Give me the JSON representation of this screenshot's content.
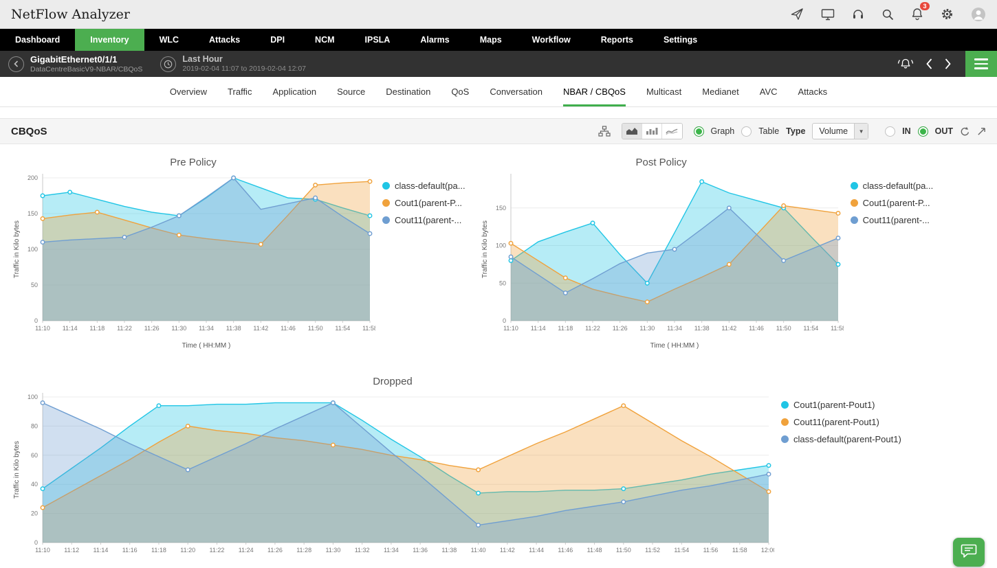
{
  "app": {
    "title": "NetFlow Analyzer",
    "notification_count": "3"
  },
  "icons": {
    "topbar": [
      "send-icon",
      "monitor-icon",
      "headset-icon",
      "search-icon",
      "notifications-icon",
      "settings-icon",
      "user-avatar"
    ],
    "subheader": [
      "back-icon",
      "clock-icon",
      "alarm-icon",
      "chevron-left-icon",
      "chevron-right-icon",
      "menu-icon"
    ],
    "toolbar": [
      "hierarchy-icon",
      "area-chart-icon",
      "bar-chart-icon",
      "line-chart-icon",
      "refresh-icon",
      "expand-icon"
    ],
    "footer": [
      "chat-icon"
    ]
  },
  "colors": {
    "accent_green": "#4cae50",
    "series_cyan": "#20c5e5",
    "series_orange": "#f0a23c",
    "series_blue": "#6f9ed1",
    "badge_red": "#e8483b",
    "nav_black": "#000000",
    "subheader_gray": "#323232"
  },
  "nav": {
    "items": [
      {
        "label": "Dashboard",
        "active": false
      },
      {
        "label": "Inventory",
        "active": true
      },
      {
        "label": "WLC",
        "active": false
      },
      {
        "label": "Attacks",
        "active": false
      },
      {
        "label": "DPI",
        "active": false
      },
      {
        "label": "NCM",
        "active": false
      },
      {
        "label": "IPSLA",
        "active": false
      },
      {
        "label": "Alarms",
        "active": false
      },
      {
        "label": "Maps",
        "active": false
      },
      {
        "label": "Workflow",
        "active": false
      },
      {
        "label": "Reports",
        "active": false
      },
      {
        "label": "Settings",
        "active": false
      }
    ]
  },
  "subheader": {
    "device_name": "GigabitEthernet0/1/1",
    "device_path": "DataCentreBasicV9-NBAR/CBQoS",
    "period_label": "Last Hour",
    "period_range": "2019-02-04 11:07 to 2019-02-04 12:07"
  },
  "tabs": {
    "items": [
      "Overview",
      "Traffic",
      "Application",
      "Source",
      "Destination",
      "QoS",
      "Conversation",
      "NBAR / CBQoS",
      "Multicast",
      "Medianet",
      "AVC",
      "Attacks"
    ],
    "active": "NBAR / CBQoS"
  },
  "toolbar": {
    "title": "CBQoS",
    "graph_label": "Graph",
    "table_label": "Table",
    "type_label": "Type",
    "type_value": "Volume",
    "in_label": "IN",
    "out_label": "OUT",
    "graph_selected": true,
    "table_selected": false,
    "in_selected": false,
    "out_selected": true
  },
  "chart_data": [
    {
      "type": "area",
      "title": "Pre Policy",
      "xlabel": "Time ( HH:MM )",
      "ylabel": "Traffic in Kilo bytes",
      "ylim": [
        0,
        200
      ],
      "yticks": [
        0,
        50,
        100,
        150,
        200
      ],
      "grid": "horizontal",
      "legend_position": "right",
      "categories": [
        "11:10",
        "11:14",
        "11:18",
        "11:22",
        "11:26",
        "11:30",
        "11:34",
        "11:38",
        "11:42",
        "11:46",
        "11:50",
        "11:54",
        "11:58"
      ],
      "series": [
        {
          "name": "class-default(pa...",
          "color": "#20c5e5",
          "values": [
            175,
            180,
            170,
            160,
            152,
            147,
            172,
            200,
            186,
            172,
            170,
            158,
            147
          ],
          "markers": [
            0,
            1,
            5,
            7,
            10,
            12
          ]
        },
        {
          "name": "Cout1(parent-P...",
          "color": "#f0a23c",
          "values": [
            143,
            148,
            152,
            141,
            130,
            120,
            115,
            111,
            107,
            148,
            190,
            193,
            195
          ],
          "markers": [
            0,
            2,
            5,
            8,
            10,
            12
          ]
        },
        {
          "name": "Cout11(parent-...",
          "color": "#6f9ed1",
          "values": [
            110,
            113,
            115,
            117,
            131,
            147,
            173,
            200,
            156,
            164,
            172,
            146,
            122
          ],
          "markers": [
            0,
            3,
            5,
            7,
            10,
            12
          ]
        }
      ]
    },
    {
      "type": "area",
      "title": "Post Policy",
      "xlabel": "Time ( HH:MM )",
      "ylabel": "Traffic in Kilo bytes",
      "ylim": [
        0,
        190
      ],
      "yticks": [
        0,
        50,
        100,
        150
      ],
      "grid": "horizontal",
      "legend_position": "right",
      "categories": [
        "11:10",
        "11:14",
        "11:18",
        "11:22",
        "11:26",
        "11:30",
        "11:34",
        "11:38",
        "11:42",
        "11:46",
        "11:50",
        "11:54",
        "11:58"
      ],
      "series": [
        {
          "name": "class-default(pa...",
          "color": "#20c5e5",
          "values": [
            80,
            105,
            118,
            130,
            88,
            50,
            117,
            185,
            170,
            160,
            150,
            112,
            75
          ],
          "markers": [
            0,
            3,
            5,
            7,
            10,
            12
          ]
        },
        {
          "name": "Cout1(parent-P...",
          "color": "#f0a23c",
          "values": [
            103,
            80,
            57,
            42,
            33,
            25,
            42,
            58,
            75,
            114,
            153,
            148,
            143
          ],
          "markers": [
            0,
            2,
            5,
            8,
            10,
            12
          ]
        },
        {
          "name": "Cout11(parent-...",
          "color": "#6f9ed1",
          "values": [
            85,
            61,
            37,
            56,
            76,
            90,
            95,
            122,
            150,
            115,
            80,
            95,
            110
          ],
          "markers": [
            0,
            2,
            6,
            8,
            10,
            12
          ]
        }
      ]
    },
    {
      "type": "area",
      "title": "Dropped",
      "xlabel": "",
      "ylabel": "Traffic in Kilo bytes",
      "ylim": [
        0,
        100
      ],
      "yticks": [
        0,
        20,
        40,
        60,
        80,
        100
      ],
      "grid": "horizontal",
      "legend_position": "right",
      "categories": [
        "11:10",
        "11:12",
        "11:14",
        "11:16",
        "11:18",
        "11:20",
        "11:22",
        "11:24",
        "11:26",
        "11:28",
        "11:30",
        "11:32",
        "11:34",
        "11:36",
        "11:38",
        "11:40",
        "11:42",
        "11:44",
        "11:46",
        "11:48",
        "11:50",
        "11:52",
        "11:54",
        "11:56",
        "11:58",
        "12:00"
      ],
      "series": [
        {
          "name": "Cout1(parent-Pout1)",
          "color": "#20c5e5",
          "values": [
            37,
            51,
            65,
            80,
            94,
            94,
            95,
            95,
            96,
            96,
            96,
            84,
            71,
            59,
            46,
            34,
            35,
            35,
            36,
            36,
            37,
            40,
            43,
            47,
            50,
            53
          ],
          "markers": [
            0,
            4,
            10,
            15,
            20,
            25
          ]
        },
        {
          "name": "Cout11(parent-Pout1)",
          "color": "#f0a23c",
          "values": [
            24,
            35,
            46,
            57,
            69,
            80,
            77,
            75,
            72,
            70,
            67,
            64,
            60,
            57,
            53,
            50,
            59,
            68,
            76,
            85,
            94,
            82,
            70,
            59,
            47,
            35
          ],
          "markers": [
            0,
            5,
            10,
            15,
            20,
            25
          ]
        },
        {
          "name": "class-default(parent-Pout1)",
          "color": "#6f9ed1",
          "values": [
            96,
            87,
            78,
            68,
            59,
            50,
            59,
            68,
            78,
            87,
            96,
            79,
            62,
            46,
            29,
            12,
            15,
            18,
            22,
            25,
            28,
            32,
            36,
            39,
            43,
            47
          ],
          "markers": [
            0,
            5,
            10,
            15,
            20,
            25
          ]
        }
      ]
    }
  ]
}
